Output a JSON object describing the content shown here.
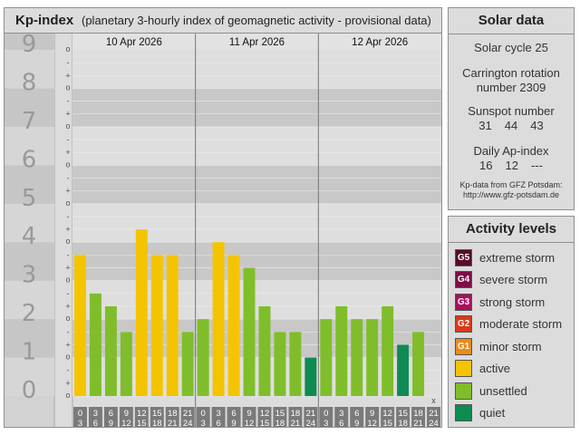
{
  "kp_panel": {
    "title": "Kp-index",
    "subtitle": "(planetary 3-hourly index of geomagnetic activity - provisional data)",
    "y_levels": [
      "0",
      "1",
      "2",
      "3",
      "4",
      "5",
      "6",
      "7",
      "8",
      "9"
    ],
    "minor_marks": [
      "o",
      "+",
      "-"
    ],
    "dates": [
      "10 Apr 2026",
      "11 Apr 2026",
      "12 Apr 2026"
    ],
    "hour_start": [
      "0",
      "3",
      "6",
      "9",
      "12",
      "15",
      "18",
      "21"
    ],
    "hour_end": [
      "3",
      "6",
      "9",
      "12",
      "15",
      "18",
      "21",
      "24"
    ],
    "missing_marker": "x"
  },
  "chart_data": {
    "type": "bar",
    "title": "Kp-index",
    "ylim": [
      0,
      9
    ],
    "x": [
      "10 Apr 2026 00-03",
      "10 Apr 2026 03-06",
      "10 Apr 2026 06-09",
      "10 Apr 2026 09-12",
      "10 Apr 2026 12-15",
      "10 Apr 2026 15-18",
      "10 Apr 2026 18-21",
      "10 Apr 2026 21-24",
      "11 Apr 2026 00-03",
      "11 Apr 2026 03-06",
      "11 Apr 2026 06-09",
      "11 Apr 2026 09-12",
      "11 Apr 2026 12-15",
      "11 Apr 2026 15-18",
      "11 Apr 2026 18-21",
      "11 Apr 2026 21-24",
      "12 Apr 2026 00-03",
      "12 Apr 2026 03-06",
      "12 Apr 2026 06-09",
      "12 Apr 2026 09-12",
      "12 Apr 2026 12-15",
      "12 Apr 2026 15-18",
      "12 Apr 2026 18-21",
      "12 Apr 2026 21-24"
    ],
    "values": [
      3.667,
      2.667,
      2.333,
      1.667,
      4.333,
      3.667,
      3.667,
      1.667,
      2.0,
      4.0,
      3.667,
      3.333,
      2.333,
      1.667,
      1.667,
      1.0,
      2.0,
      2.333,
      2.0,
      2.0,
      2.333,
      1.333,
      1.667,
      null
    ],
    "colors": [
      "#f5c400",
      "#7fbe2a",
      "#7fbe2a",
      "#7fbe2a",
      "#f5c400",
      "#f5c400",
      "#f5c400",
      "#7fbe2a",
      "#7fbe2a",
      "#f5c400",
      "#f5c400",
      "#7fbe2a",
      "#7fbe2a",
      "#7fbe2a",
      "#7fbe2a",
      "#0f8a52",
      "#7fbe2a",
      "#7fbe2a",
      "#7fbe2a",
      "#7fbe2a",
      "#7fbe2a",
      "#0f8a52",
      "#7fbe2a",
      null
    ]
  },
  "solar": {
    "title": "Solar data",
    "cycle": "Solar cycle 25",
    "carrington_label": "Carrington rotation",
    "carrington_number": "number 2309",
    "sunspot_label": "Sunspot number",
    "sunspot_values": [
      "31",
      "44",
      "43"
    ],
    "ap_label": "Daily Ap-index",
    "ap_values": [
      "16",
      "12",
      "---"
    ],
    "source_line1": "Kp-data from GFZ Potsdam:",
    "source_line2": "http://www.gfz-potsdam.de"
  },
  "activity": {
    "title": "Activity levels",
    "items": [
      {
        "code": "G5",
        "label": "extreme storm",
        "color": "#5a0a2c"
      },
      {
        "code": "G4",
        "label": "severe storm",
        "color": "#7d0d45"
      },
      {
        "code": "G3",
        "label": "strong storm",
        "color": "#a8115c"
      },
      {
        "code": "G2",
        "label": "moderate storm",
        "color": "#d9391b"
      },
      {
        "code": "G1",
        "label": "minor storm",
        "color": "#e88a1a"
      },
      {
        "code": "",
        "label": "active",
        "color": "#f5c400"
      },
      {
        "code": "",
        "label": "unsettled",
        "color": "#7fbe2a"
      },
      {
        "code": "",
        "label": "quiet",
        "color": "#0f8a52"
      }
    ]
  }
}
